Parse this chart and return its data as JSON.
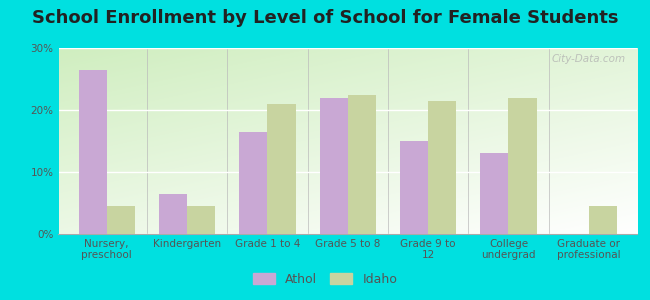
{
  "title": "School Enrollment by Level of School for Female Students",
  "categories": [
    "Nursery,\npreschool",
    "Kindergarten",
    "Grade 1 to 4",
    "Grade 5 to 8",
    "Grade 9 to\n12",
    "College\nundergrad",
    "Graduate or\nprofessional"
  ],
  "athol_values": [
    26.5,
    6.5,
    16.5,
    22.0,
    15.0,
    13.0,
    0.0
  ],
  "idaho_values": [
    4.5,
    4.5,
    21.0,
    22.5,
    21.5,
    22.0,
    4.5
  ],
  "athol_color": "#c9a8d4",
  "idaho_color": "#c8d4a0",
  "background_color": "#00e0e0",
  "ylim": [
    0,
    30
  ],
  "yticks": [
    0,
    10,
    20,
    30
  ],
  "ytick_labels": [
    "0%",
    "10%",
    "20%",
    "30%"
  ],
  "bar_width": 0.35,
  "legend_labels": [
    "Athol",
    "Idaho"
  ],
  "watermark": "City-Data.com",
  "title_fontsize": 13,
  "tick_fontsize": 7.5,
  "legend_fontsize": 9
}
